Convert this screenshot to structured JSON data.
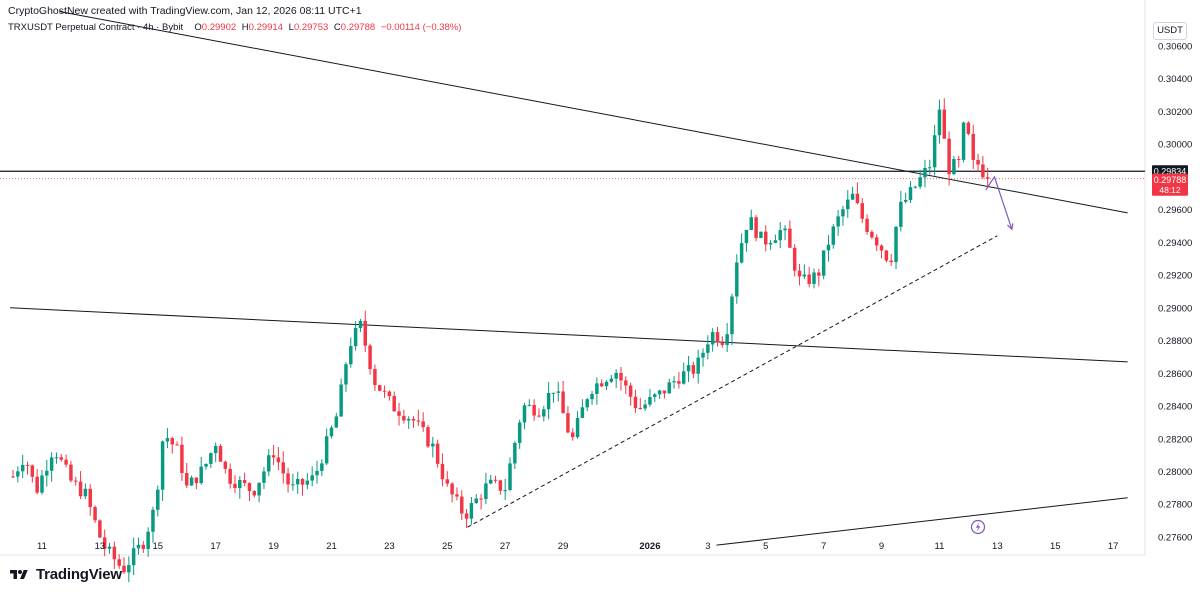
{
  "header": {
    "created_line": "CryptoGhostNew created with TradingView.com, Jan 12, 2026 08:11 UTC+1"
  },
  "legend": {
    "symbol": "TRXUSDT Perpetual Contract · 4h · Bybit",
    "open_label": "O",
    "open": "0.29902",
    "high_label": "H",
    "high": "0.29914",
    "low_label": "L",
    "low": "0.29753",
    "close_label": "C",
    "close": "0.29788",
    "change": "−0.00114 (−0.38%)"
  },
  "currency": "USDT",
  "price_badges": {
    "line_level": "0.29834",
    "last_price": "0.29788",
    "countdown": "48:12"
  },
  "colors": {
    "up": "#089981",
    "down": "#f23645",
    "line": "#131722",
    "arrow": "#7e57c2",
    "price_line": "#f23645"
  },
  "footer": {
    "brand": "TradingView"
  },
  "chart_data": {
    "type": "candlestick",
    "ylim": [
      0.2749,
      0.3088
    ],
    "y_ticks": [
      "0.30600",
      "0.30400",
      "0.30200",
      "0.30000",
      "0.29600",
      "0.29400",
      "0.29200",
      "0.29000",
      "0.28800",
      "0.28600",
      "0.28400",
      "0.28200",
      "0.28000",
      "0.27800",
      "0.27600"
    ],
    "x_ticks": [
      {
        "label": "11",
        "day": 11
      },
      {
        "label": "13",
        "day": 13
      },
      {
        "label": "15",
        "day": 15
      },
      {
        "label": "17",
        "day": 17
      },
      {
        "label": "19",
        "day": 19
      },
      {
        "label": "21",
        "day": 21
      },
      {
        "label": "23",
        "day": 23
      },
      {
        "label": "25",
        "day": 25
      },
      {
        "label": "27",
        "day": 27
      },
      {
        "label": "29",
        "day": 29
      },
      {
        "label": "2026",
        "day": 32
      },
      {
        "label": "3",
        "day": 34
      },
      {
        "label": "5",
        "day": 36
      },
      {
        "label": "7",
        "day": 38
      },
      {
        "label": "9",
        "day": 40
      },
      {
        "label": "11",
        "day": 42
      },
      {
        "label": "13",
        "day": 44
      },
      {
        "label": "15",
        "day": 46
      },
      {
        "label": "17",
        "day": 48
      }
    ],
    "anchors": [
      {
        "day": 10.0,
        "price": 0.2797
      },
      {
        "day": 10.4,
        "price": 0.281
      },
      {
        "day": 10.8,
        "price": 0.2788
      },
      {
        "day": 11.4,
        "price": 0.2815
      },
      {
        "day": 12.0,
        "price": 0.2794
      },
      {
        "day": 12.5,
        "price": 0.2786
      },
      {
        "day": 13.1,
        "price": 0.2755
      },
      {
        "day": 13.8,
        "price": 0.274
      },
      {
        "day": 14.5,
        "price": 0.2757
      },
      {
        "day": 14.9,
        "price": 0.2778
      },
      {
        "day": 15.2,
        "price": 0.2824
      },
      {
        "day": 15.7,
        "price": 0.2812
      },
      {
        "day": 16.0,
        "price": 0.279
      },
      {
        "day": 16.6,
        "price": 0.2802
      },
      {
        "day": 17.0,
        "price": 0.2818
      },
      {
        "day": 17.4,
        "price": 0.2797
      },
      {
        "day": 18.3,
        "price": 0.2788
      },
      {
        "day": 19.0,
        "price": 0.2812
      },
      {
        "day": 19.6,
        "price": 0.2789
      },
      {
        "day": 20.4,
        "price": 0.2796
      },
      {
        "day": 21.2,
        "price": 0.2835
      },
      {
        "day": 21.6,
        "price": 0.2877
      },
      {
        "day": 22.0,
        "price": 0.2889
      },
      {
        "day": 22.5,
        "price": 0.2855
      },
      {
        "day": 23.1,
        "price": 0.284
      },
      {
        "day": 23.8,
        "price": 0.2832
      },
      {
        "day": 24.5,
        "price": 0.2815
      },
      {
        "day": 25.0,
        "price": 0.279
      },
      {
        "day": 25.6,
        "price": 0.2773
      },
      {
        "day": 26.4,
        "price": 0.2792
      },
      {
        "day": 27.0,
        "price": 0.279
      },
      {
        "day": 27.6,
        "price": 0.284
      },
      {
        "day": 28.2,
        "price": 0.2838
      },
      {
        "day": 28.7,
        "price": 0.2852
      },
      {
        "day": 29.3,
        "price": 0.2818
      },
      {
        "day": 29.9,
        "price": 0.285
      },
      {
        "day": 30.8,
        "price": 0.2862
      },
      {
        "day": 31.6,
        "price": 0.2838
      },
      {
        "day": 32.4,
        "price": 0.2848
      },
      {
        "day": 33.0,
        "price": 0.2858
      },
      {
        "day": 33.6,
        "price": 0.2863
      },
      {
        "day": 34.1,
        "price": 0.2885
      },
      {
        "day": 34.6,
        "price": 0.288
      },
      {
        "day": 35.0,
        "price": 0.293
      },
      {
        "day": 35.4,
        "price": 0.2955
      },
      {
        "day": 35.9,
        "price": 0.294
      },
      {
        "day": 36.6,
        "price": 0.2948
      },
      {
        "day": 37.2,
        "price": 0.2915
      },
      {
        "day": 37.8,
        "price": 0.292
      },
      {
        "day": 38.2,
        "price": 0.2942
      },
      {
        "day": 38.6,
        "price": 0.2958
      },
      {
        "day": 39.0,
        "price": 0.2968
      },
      {
        "day": 39.4,
        "price": 0.2952
      },
      {
        "day": 39.8,
        "price": 0.2942
      },
      {
        "day": 40.3,
        "price": 0.2928
      },
      {
        "day": 40.6,
        "price": 0.296
      },
      {
        "day": 41.2,
        "price": 0.2975
      },
      {
        "day": 41.7,
        "price": 0.2988
      },
      {
        "day": 42.0,
        "price": 0.3022
      },
      {
        "day": 42.3,
        "price": 0.2985
      },
      {
        "day": 42.7,
        "price": 0.2988
      },
      {
        "day": 42.9,
        "price": 0.302
      },
      {
        "day": 43.1,
        "price": 0.2987
      },
      {
        "day": 43.4,
        "price": 0.2988
      },
      {
        "day": 43.6,
        "price": 0.29788
      }
    ],
    "drawings": [
      {
        "kind": "line",
        "style": "solid",
        "from": {
          "day": 11.6,
          "price": 0.3081
        },
        "to": {
          "day": 48.5,
          "price": 0.2958
        }
      },
      {
        "kind": "line",
        "style": "solid",
        "from": {
          "day": 9.9,
          "price": 0.29
        },
        "to": {
          "day": 48.5,
          "price": 0.2867
        }
      },
      {
        "kind": "line",
        "style": "solid",
        "from": {
          "day": 34.3,
          "price": 0.2755
        },
        "to": {
          "day": 48.5,
          "price": 0.2784
        }
      },
      {
        "kind": "line",
        "style": "dashed",
        "from": {
          "day": 25.7,
          "price": 0.2766
        },
        "to": {
          "day": 44.0,
          "price": 0.2944
        }
      },
      {
        "kind": "hline",
        "style": "solid",
        "price": 0.29834
      },
      {
        "kind": "hline",
        "style": "dotted",
        "price": 0.29788
      },
      {
        "kind": "arrow",
        "points": [
          {
            "day": 43.6,
            "price": 0.2972
          },
          {
            "day": 43.9,
            "price": 0.298
          },
          {
            "day": 44.5,
            "price": 0.2948
          }
        ]
      }
    ]
  }
}
